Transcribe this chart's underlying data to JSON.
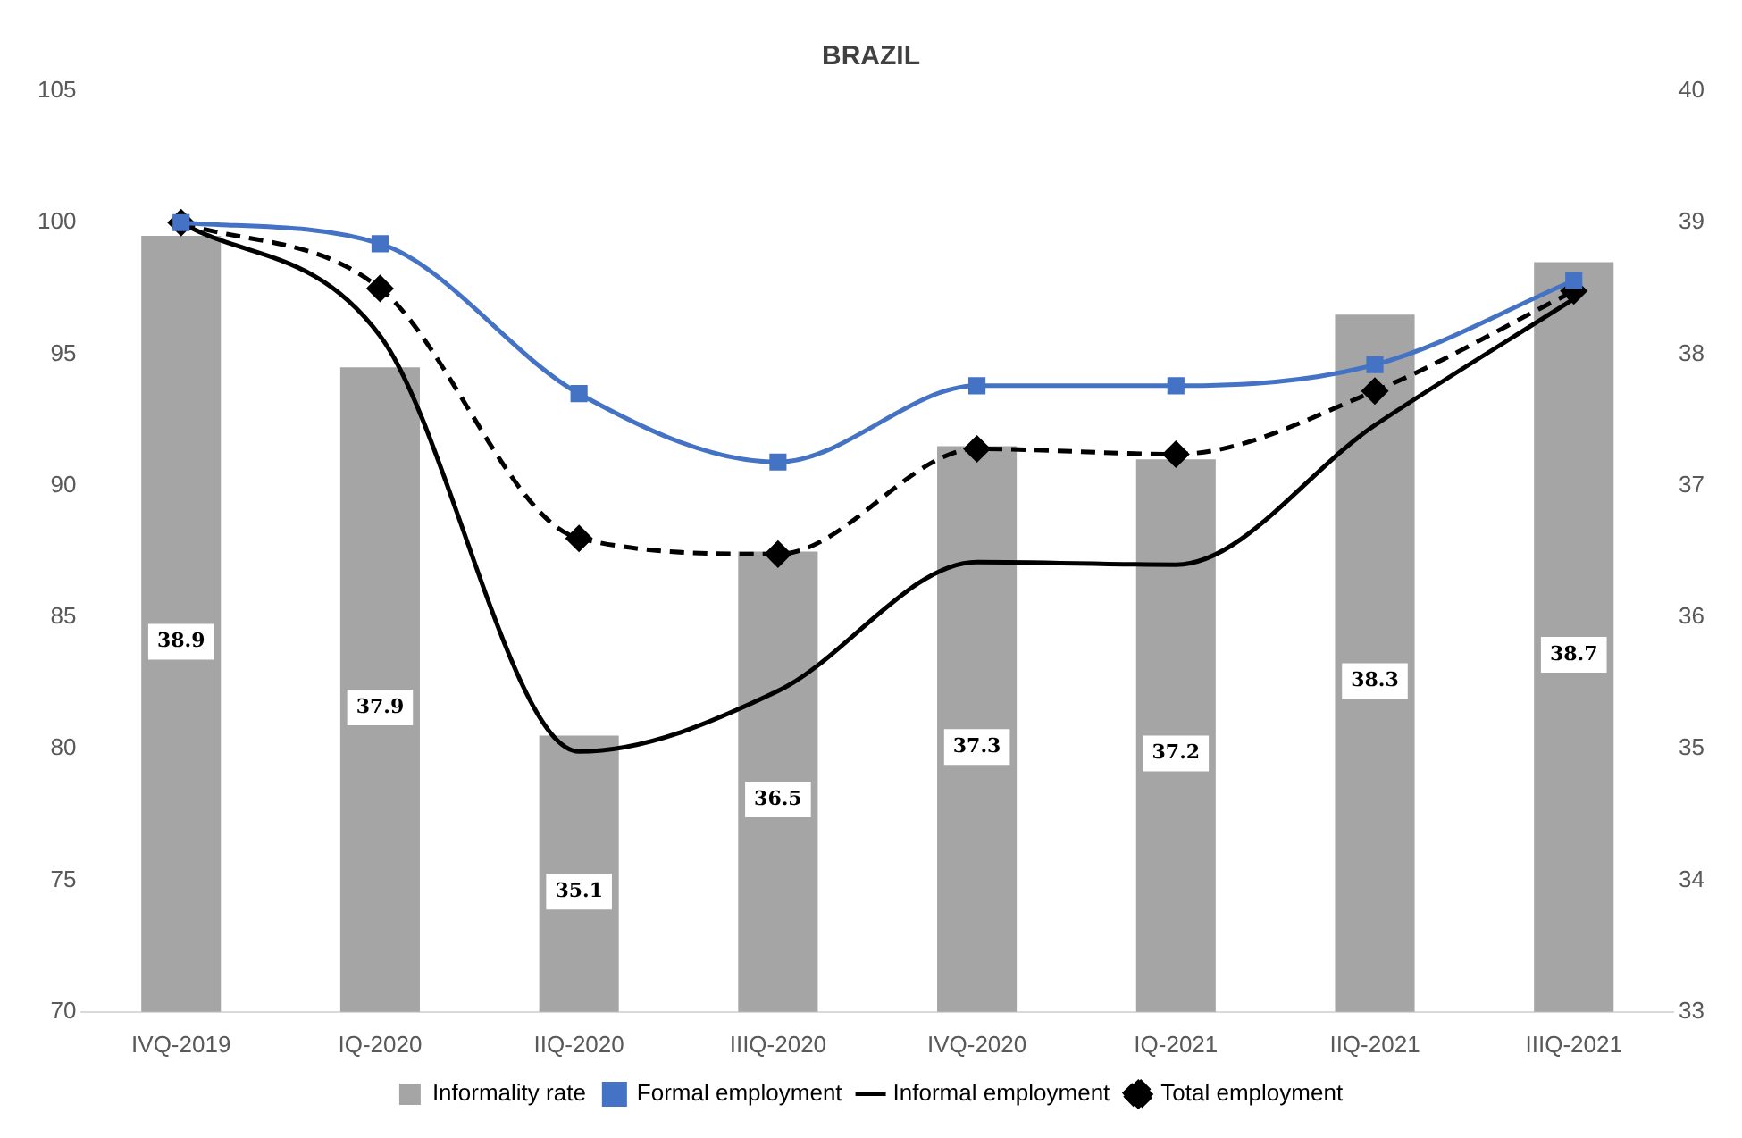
{
  "chart_data": {
    "type": "bar",
    "title": "BRAZIL",
    "categories": [
      "IVQ-2019",
      "IQ-2020",
      "IIQ-2020",
      "IIIQ-2020",
      "IVQ-2020",
      "IQ-2021",
      "IIQ-2021",
      "IIIQ-2021"
    ],
    "series": [
      {
        "name": "Informality rate",
        "axis": "y2",
        "color": "#a5a5a5",
        "values": [
          38.9,
          37.9,
          35.1,
          36.5,
          37.3,
          37.2,
          38.3,
          38.7
        ],
        "value_labels": [
          "38.9",
          "37.9",
          "35.1",
          "36.5",
          "37.3",
          "37.2",
          "38.3",
          "38.7"
        ]
      },
      {
        "name": "Formal employment",
        "type": "line",
        "color": "#4472c4",
        "marker": "square",
        "line_style": "solid",
        "values": [
          100,
          99.2,
          93.5,
          90.9,
          93.8,
          93.8,
          94.6,
          97.8
        ]
      },
      {
        "name": "Informal employment",
        "type": "line",
        "color": "#000000",
        "marker": "none",
        "line_style": "solid",
        "values": [
          100,
          95.7,
          79.9,
          82.2,
          87.1,
          87.0,
          92.3,
          97.1
        ]
      },
      {
        "name": "Total employment",
        "type": "line",
        "color": "#000000",
        "marker": "diamond",
        "line_style": "dashed",
        "values": [
          100,
          97.5,
          88.0,
          87.4,
          91.4,
          91.2,
          93.6,
          97.4
        ]
      }
    ],
    "ylim": [
      70,
      105
    ],
    "yticks": [
      70,
      75,
      80,
      85,
      90,
      95,
      100,
      105
    ],
    "y2lim": [
      33,
      40
    ],
    "y2ticks": [
      33,
      34,
      35,
      36,
      37,
      38,
      39,
      40
    ],
    "grid": false,
    "legend": "bottom"
  }
}
